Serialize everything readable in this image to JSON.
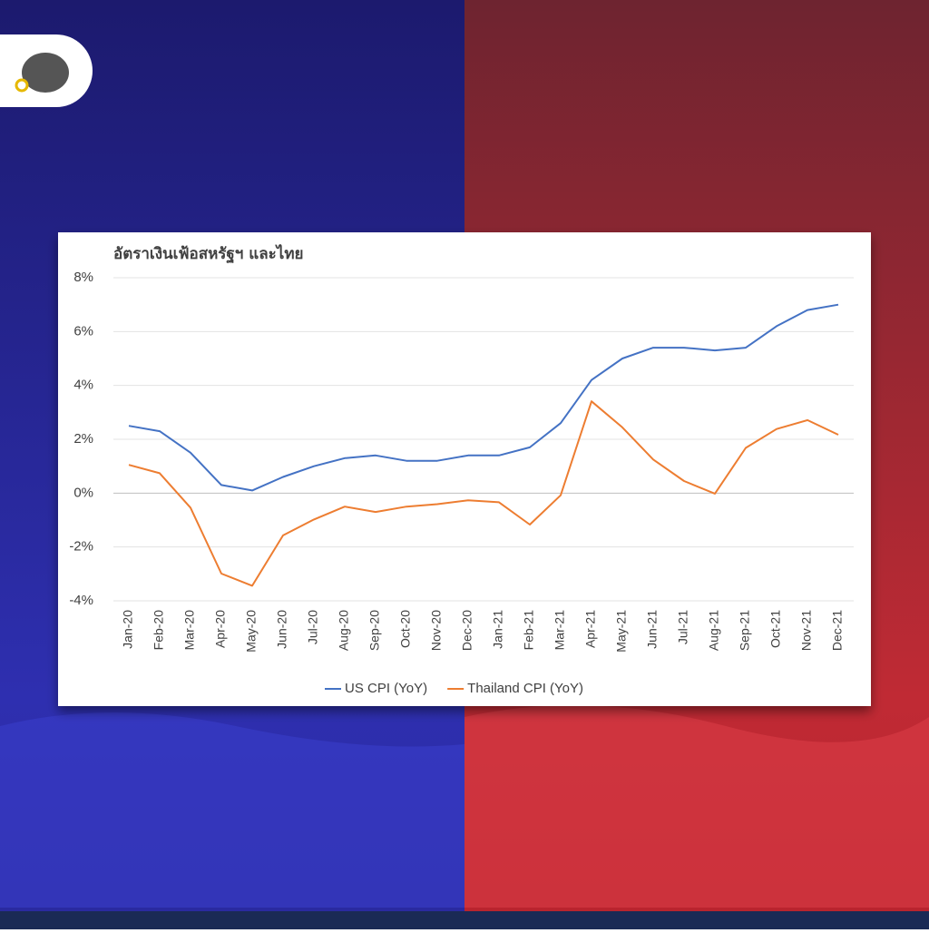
{
  "chart_data": {
    "type": "line",
    "title": "อัตราเงินเฟ้อสหรัฐฯ และไทย",
    "categories": [
      "Jan-20",
      "Feb-20",
      "Mar-20",
      "Apr-20",
      "May-20",
      "Jun-20",
      "Jul-20",
      "Aug-20",
      "Sep-20",
      "Oct-20",
      "Nov-20",
      "Dec-20",
      "Jan-21",
      "Feb-21",
      "Mar-21",
      "Apr-21",
      "May-21",
      "Jun-21",
      "Jul-21",
      "Aug-21",
      "Sep-21",
      "Oct-21",
      "Nov-21",
      "Dec-21"
    ],
    "series": [
      {
        "name": "US CPI (YoY)",
        "color": "#4472c4",
        "values": [
          2.5,
          2.3,
          1.5,
          0.3,
          0.1,
          0.6,
          1.0,
          1.3,
          1.4,
          1.2,
          1.2,
          1.4,
          1.4,
          1.7,
          2.6,
          4.2,
          5.0,
          5.4,
          5.4,
          5.3,
          5.4,
          6.2,
          6.8,
          7.0
        ]
      },
      {
        "name": "Thailand CPI (YoY)",
        "color": "#ed7d31",
        "values": [
          1.05,
          0.74,
          -0.54,
          -2.99,
          -3.44,
          -1.57,
          -0.98,
          -0.5,
          -0.7,
          -0.5,
          -0.41,
          -0.27,
          -0.34,
          -1.17,
          -0.08,
          3.41,
          2.44,
          1.25,
          0.45,
          -0.02,
          1.68,
          2.38,
          2.71,
          2.17
        ]
      }
    ],
    "ylim": [
      -4,
      8
    ],
    "yticks": [
      {
        "value": -4,
        "label": "-4%"
      },
      {
        "value": -2,
        "label": "-2%"
      },
      {
        "value": 0,
        "label": "0%"
      },
      {
        "value": 2,
        "label": "2%"
      },
      {
        "value": 4,
        "label": "4%"
      },
      {
        "value": 6,
        "label": "6%"
      },
      {
        "value": 8,
        "label": "8%"
      }
    ],
    "grid": true,
    "legend": "bottom"
  }
}
